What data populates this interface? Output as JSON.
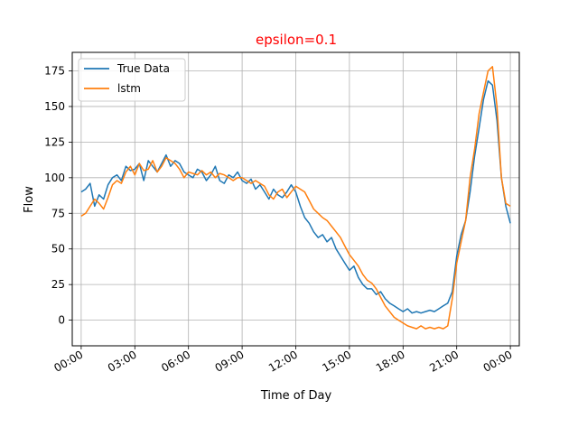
{
  "chart_data": {
    "type": "line",
    "title": "epsilon=0.1",
    "title_color": "#ff0000",
    "xlabel": "Time of Day",
    "ylabel": "Flow",
    "xlim": [
      -0.5,
      24.5
    ],
    "ylim": [
      -18,
      188
    ],
    "grid": true,
    "legend_position": "top-left",
    "x_ticks": [
      {
        "hour": 0,
        "label": "00:00"
      },
      {
        "hour": 3,
        "label": "03:00"
      },
      {
        "hour": 6,
        "label": "06:00"
      },
      {
        "hour": 9,
        "label": "09:00"
      },
      {
        "hour": 12,
        "label": "12:00"
      },
      {
        "hour": 15,
        "label": "15:00"
      },
      {
        "hour": 18,
        "label": "18:00"
      },
      {
        "hour": 21,
        "label": "21:00"
      },
      {
        "hour": 24,
        "label": "00:00"
      }
    ],
    "y_ticks": [
      0,
      25,
      50,
      75,
      100,
      125,
      150,
      175
    ],
    "series": [
      {
        "name": "True Data",
        "color": "#1f77b4",
        "points": [
          [
            0.0,
            90
          ],
          [
            0.25,
            92
          ],
          [
            0.5,
            96
          ],
          [
            0.75,
            80
          ],
          [
            1.0,
            88
          ],
          [
            1.25,
            85
          ],
          [
            1.5,
            95
          ],
          [
            1.75,
            100
          ],
          [
            2.0,
            102
          ],
          [
            2.25,
            98
          ],
          [
            2.5,
            108
          ],
          [
            2.75,
            105
          ],
          [
            3.0,
            106
          ],
          [
            3.25,
            110
          ],
          [
            3.5,
            98
          ],
          [
            3.75,
            112
          ],
          [
            4.0,
            108
          ],
          [
            4.25,
            104
          ],
          [
            4.5,
            110
          ],
          [
            4.75,
            116
          ],
          [
            5.0,
            108
          ],
          [
            5.25,
            112
          ],
          [
            5.5,
            110
          ],
          [
            5.75,
            104
          ],
          [
            6.0,
            102
          ],
          [
            6.25,
            100
          ],
          [
            6.5,
            106
          ],
          [
            6.75,
            104
          ],
          [
            7.0,
            98
          ],
          [
            7.25,
            102
          ],
          [
            7.5,
            108
          ],
          [
            7.75,
            98
          ],
          [
            8.0,
            96
          ],
          [
            8.25,
            102
          ],
          [
            8.5,
            100
          ],
          [
            8.75,
            104
          ],
          [
            9.0,
            98
          ],
          [
            9.25,
            96
          ],
          [
            9.5,
            99
          ],
          [
            9.75,
            92
          ],
          [
            10.0,
            95
          ],
          [
            10.25,
            90
          ],
          [
            10.5,
            85
          ],
          [
            10.75,
            92
          ],
          [
            11.0,
            88
          ],
          [
            11.25,
            86
          ],
          [
            11.5,
            90
          ],
          [
            11.75,
            95
          ],
          [
            12.0,
            90
          ],
          [
            12.25,
            80
          ],
          [
            12.5,
            72
          ],
          [
            12.75,
            68
          ],
          [
            13.0,
            62
          ],
          [
            13.25,
            58
          ],
          [
            13.5,
            60
          ],
          [
            13.75,
            55
          ],
          [
            14.0,
            58
          ],
          [
            14.25,
            50
          ],
          [
            14.5,
            45
          ],
          [
            14.75,
            40
          ],
          [
            15.0,
            35
          ],
          [
            15.25,
            38
          ],
          [
            15.5,
            30
          ],
          [
            15.75,
            25
          ],
          [
            16.0,
            22
          ],
          [
            16.25,
            22
          ],
          [
            16.5,
            18
          ],
          [
            16.75,
            20
          ],
          [
            17.0,
            15
          ],
          [
            17.25,
            12
          ],
          [
            17.5,
            10
          ],
          [
            17.75,
            8
          ],
          [
            18.0,
            6
          ],
          [
            18.25,
            8
          ],
          [
            18.5,
            5
          ],
          [
            18.75,
            6
          ],
          [
            19.0,
            5
          ],
          [
            19.25,
            6
          ],
          [
            19.5,
            7
          ],
          [
            19.75,
            6
          ],
          [
            20.0,
            8
          ],
          [
            20.25,
            10
          ],
          [
            20.5,
            12
          ],
          [
            20.75,
            20
          ],
          [
            21.0,
            45
          ],
          [
            21.25,
            60
          ],
          [
            21.5,
            70
          ],
          [
            21.75,
            90
          ],
          [
            22.0,
            115
          ],
          [
            22.25,
            135
          ],
          [
            22.5,
            155
          ],
          [
            22.75,
            168
          ],
          [
            23.0,
            165
          ],
          [
            23.25,
            140
          ],
          [
            23.5,
            100
          ],
          [
            23.75,
            80
          ],
          [
            24.0,
            68
          ]
        ]
      },
      {
        "name": "lstm",
        "color": "#ff7f0e",
        "points": [
          [
            0.0,
            73
          ],
          [
            0.25,
            75
          ],
          [
            0.5,
            80
          ],
          [
            0.75,
            85
          ],
          [
            1.0,
            82
          ],
          [
            1.25,
            78
          ],
          [
            1.5,
            86
          ],
          [
            1.75,
            95
          ],
          [
            2.0,
            98
          ],
          [
            2.25,
            96
          ],
          [
            2.5,
            104
          ],
          [
            2.75,
            108
          ],
          [
            3.0,
            102
          ],
          [
            3.25,
            110
          ],
          [
            3.5,
            105
          ],
          [
            3.75,
            106
          ],
          [
            4.0,
            112
          ],
          [
            4.25,
            104
          ],
          [
            4.5,
            108
          ],
          [
            4.75,
            114
          ],
          [
            5.0,
            112
          ],
          [
            5.25,
            110
          ],
          [
            5.5,
            106
          ],
          [
            5.75,
            100
          ],
          [
            6.0,
            104
          ],
          [
            6.25,
            103
          ],
          [
            6.5,
            102
          ],
          [
            6.75,
            105
          ],
          [
            7.0,
            102
          ],
          [
            7.25,
            104
          ],
          [
            7.5,
            100
          ],
          [
            7.75,
            103
          ],
          [
            8.0,
            102
          ],
          [
            8.25,
            100
          ],
          [
            8.5,
            98
          ],
          [
            8.75,
            100
          ],
          [
            9.0,
            100
          ],
          [
            9.25,
            98
          ],
          [
            9.5,
            96
          ],
          [
            9.75,
            98
          ],
          [
            10.0,
            96
          ],
          [
            10.25,
            94
          ],
          [
            10.5,
            88
          ],
          [
            10.75,
            85
          ],
          [
            11.0,
            90
          ],
          [
            11.25,
            92
          ],
          [
            11.5,
            86
          ],
          [
            11.75,
            90
          ],
          [
            12.0,
            94
          ],
          [
            12.25,
            92
          ],
          [
            12.5,
            90
          ],
          [
            12.75,
            84
          ],
          [
            13.0,
            78
          ],
          [
            13.25,
            75
          ],
          [
            13.5,
            72
          ],
          [
            13.75,
            70
          ],
          [
            14.0,
            66
          ],
          [
            14.25,
            62
          ],
          [
            14.5,
            58
          ],
          [
            14.75,
            52
          ],
          [
            15.0,
            46
          ],
          [
            15.25,
            42
          ],
          [
            15.5,
            38
          ],
          [
            15.75,
            32
          ],
          [
            16.0,
            28
          ],
          [
            16.25,
            26
          ],
          [
            16.5,
            22
          ],
          [
            16.75,
            16
          ],
          [
            17.0,
            10
          ],
          [
            17.25,
            6
          ],
          [
            17.5,
            2
          ],
          [
            17.75,
            0
          ],
          [
            18.0,
            -2
          ],
          [
            18.25,
            -4
          ],
          [
            18.5,
            -5
          ],
          [
            18.75,
            -6
          ],
          [
            19.0,
            -4
          ],
          [
            19.25,
            -6
          ],
          [
            19.5,
            -5
          ],
          [
            19.75,
            -6
          ],
          [
            20.0,
            -5
          ],
          [
            20.25,
            -6
          ],
          [
            20.5,
            -4
          ],
          [
            20.75,
            15
          ],
          [
            21.0,
            40
          ],
          [
            21.25,
            55
          ],
          [
            21.5,
            70
          ],
          [
            21.75,
            100
          ],
          [
            22.0,
            120
          ],
          [
            22.25,
            145
          ],
          [
            22.5,
            160
          ],
          [
            22.75,
            175
          ],
          [
            23.0,
            178
          ],
          [
            23.25,
            150
          ],
          [
            23.5,
            100
          ],
          [
            23.75,
            82
          ],
          [
            24.0,
            80
          ]
        ]
      }
    ]
  }
}
